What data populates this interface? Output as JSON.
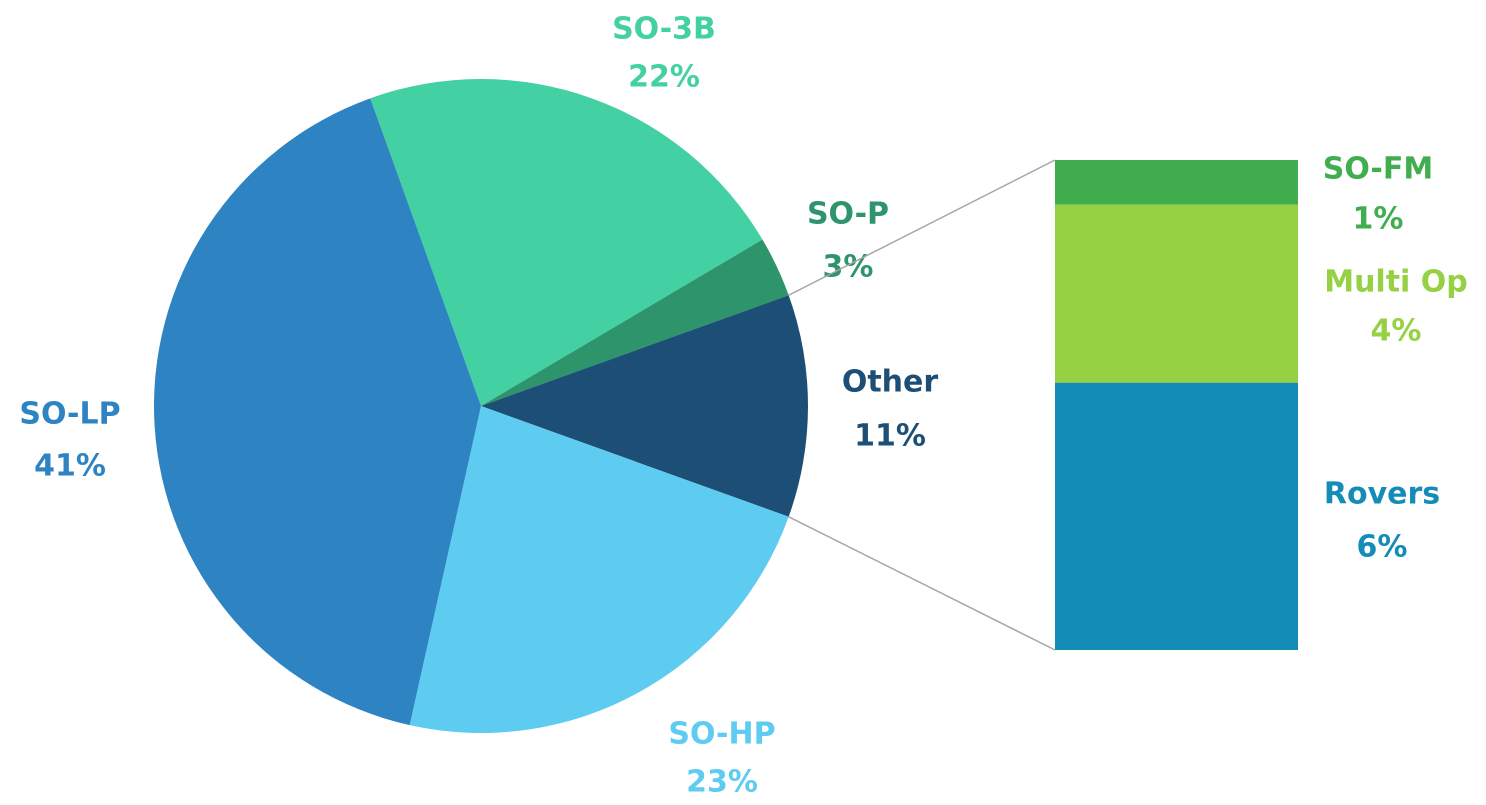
{
  "chart_data": [
    {
      "type": "pie",
      "categories": [
        "SO-3B",
        "SO-P",
        "Other",
        "SO-HP",
        "SO-LP"
      ],
      "values": [
        22,
        3,
        11,
        23,
        41
      ],
      "value_labels": [
        "22%",
        "3%",
        "11%",
        "23%",
        "41%"
      ],
      "colors": [
        "#43d0a2",
        "#2e946c",
        "#1d4e75",
        "#5ecbf0",
        "#2e83c3"
      ]
    },
    {
      "type": "stacked_bar",
      "categories": [
        "SO-FM",
        "Multi Op",
        "Rovers"
      ],
      "values": [
        1,
        4,
        6
      ],
      "value_labels": [
        "1%",
        "4%",
        "6%"
      ],
      "colors": [
        "#40ae4f",
        "#96d143",
        "#138db7"
      ]
    }
  ]
}
